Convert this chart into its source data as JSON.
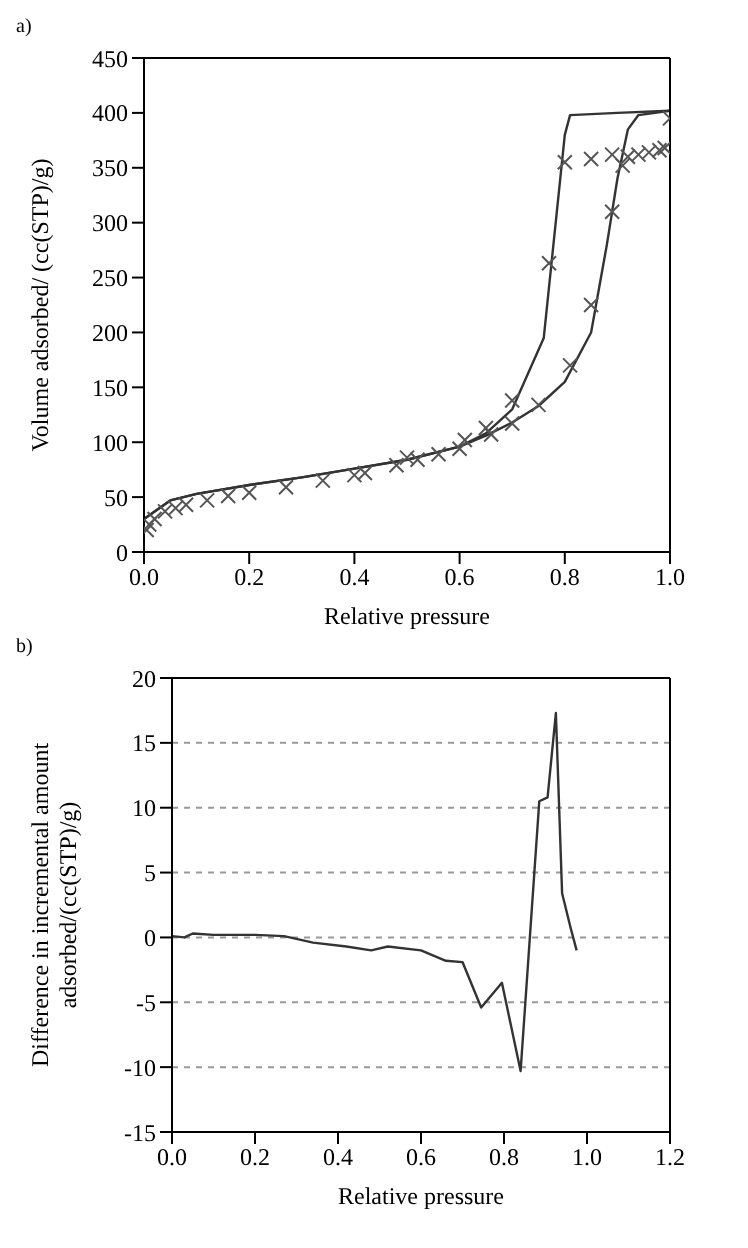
{
  "chart_data": [
    {
      "type": "scatter",
      "annotations": [
        "a)"
      ],
      "xlabel": "Relative pressure",
      "ylabel": "Volume adsorbed/ (cc(STP)/g)",
      "xlim": [
        0,
        1
      ],
      "xticks": [
        {
          "value": 0,
          "label": "0.0"
        },
        {
          "value": 0.2,
          "label": "0.2"
        },
        {
          "value": 0.4,
          "label": "0.4"
        },
        {
          "value": 0.6,
          "label": "0.6"
        },
        {
          "value": 0.8,
          "label": "0.8"
        },
        {
          "value": 1,
          "label": "1.0"
        }
      ],
      "ylim": [
        0,
        450
      ],
      "yticks": [
        0,
        50,
        100,
        150,
        200,
        250,
        300,
        350,
        400,
        450
      ],
      "grid": false,
      "legend": false,
      "series": [
        {
          "marker": "cross",
          "color": "#555555",
          "x": [
            0.005,
            0.01,
            0.02,
            0.04,
            0.06,
            0.08,
            0.12,
            0.16,
            0.2,
            0.27,
            0.34,
            0.4,
            0.42,
            0.48,
            0.52,
            0.56,
            0.6,
            0.66,
            0.7,
            0.75,
            0.81,
            0.85,
            0.89,
            0.91,
            0.92,
            0.94,
            0.96,
            0.98,
            0.99,
            1.0,
            0.89,
            0.85,
            0.8,
            0.77,
            0.7,
            0.65,
            0.61,
            0.5
          ],
          "values": [
            20,
            25,
            30,
            37,
            40,
            43,
            47,
            51,
            54,
            59,
            65,
            70,
            72,
            79,
            84,
            89,
            94,
            107,
            117,
            134,
            170,
            225,
            310,
            352,
            360,
            362,
            364,
            366,
            368,
            395,
            362,
            358,
            355,
            263,
            138,
            113,
            102,
            86
          ]
        },
        {
          "type": "line",
          "marker": "none",
          "color": "#333333",
          "x": [
            0,
            0.05,
            0.1,
            0.2,
            0.3,
            0.4,
            0.5,
            0.6,
            0.65,
            0.7,
            0.76,
            0.8,
            0.81,
            0.9,
            1.0
          ],
          "values": [
            30,
            47,
            53,
            61,
            68,
            76,
            84,
            96,
            108,
            130,
            195,
            380,
            398,
            400,
            402
          ]
        },
        {
          "type": "line",
          "marker": "none",
          "color": "#333333",
          "x": [
            0,
            0.05,
            0.1,
            0.2,
            0.3,
            0.4,
            0.5,
            0.6,
            0.65,
            0.7,
            0.75,
            0.8,
            0.85,
            0.88,
            0.9,
            0.92,
            0.94,
            1.0
          ],
          "values": [
            30,
            47,
            53,
            61,
            68,
            76,
            84,
            96,
            106,
            118,
            133,
            155,
            200,
            280,
            340,
            385,
            398,
            402
          ]
        }
      ]
    },
    {
      "type": "line",
      "annotations": [
        "b)"
      ],
      "xlabel": "Relative pressure",
      "ylabel": "Difference in incremental amount adsorbed/(cc(STP)/g)",
      "xlim": [
        0,
        1.2
      ],
      "xticks": [
        {
          "value": 0,
          "label": "0.0"
        },
        {
          "value": 0.2,
          "label": "0.2"
        },
        {
          "value": 0.4,
          "label": "0.4"
        },
        {
          "value": 0.6,
          "label": "0.6"
        },
        {
          "value": 0.8,
          "label": "0.8"
        },
        {
          "value": 1,
          "label": "1.0"
        },
        {
          "value": 1.2,
          "label": "1.2"
        }
      ],
      "ylim": [
        -15,
        20
      ],
      "yticks": [
        -15,
        -10,
        -5,
        0,
        5,
        10,
        15,
        20
      ],
      "grid": "y",
      "legend": false,
      "series": [
        {
          "marker": "none",
          "color": "#333333",
          "x": [
            0,
            0.03,
            0.05,
            0.1,
            0.2,
            0.27,
            0.34,
            0.42,
            0.48,
            0.52,
            0.6,
            0.66,
            0.7,
            0.745,
            0.795,
            0.84,
            0.885,
            0.905,
            0.925,
            0.94,
            0.96,
            0.975
          ],
          "values": [
            0.1,
            0,
            0.3,
            0.2,
            0.2,
            0.1,
            -0.4,
            -0.7,
            -1,
            -0.7,
            -1,
            -1.8,
            -1.9,
            -5.4,
            -3.5,
            -10.3,
            10.5,
            10.8,
            17.3,
            3.4,
            0.8,
            -1
          ]
        }
      ]
    }
  ]
}
